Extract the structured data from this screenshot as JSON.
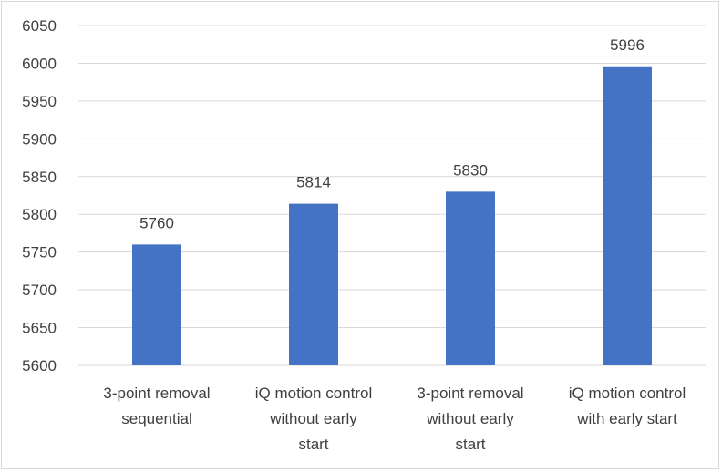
{
  "chart_data": {
    "type": "bar",
    "title": "",
    "xlabel": "",
    "ylabel": "",
    "ylim": [
      5600,
      6050
    ],
    "ytick_step": 50,
    "grid": true,
    "legend": "none",
    "bar_color": "#4472c4",
    "grid_color": "#d9d9d9",
    "categories": [
      [
        "3-point removal",
        "sequential"
      ],
      [
        "iQ motion control",
        "without early",
        "start"
      ],
      [
        "3-point removal",
        "without early",
        "start"
      ],
      [
        "iQ motion control",
        "with early start"
      ]
    ],
    "values": [
      5760,
      5814,
      5830,
      5996
    ],
    "data_labels": [
      "5760",
      "5814",
      "5830",
      "5996"
    ],
    "yticks": [
      "5600",
      "5650",
      "5700",
      "5750",
      "5800",
      "5850",
      "5900",
      "5950",
      "6000",
      "6050"
    ]
  }
}
